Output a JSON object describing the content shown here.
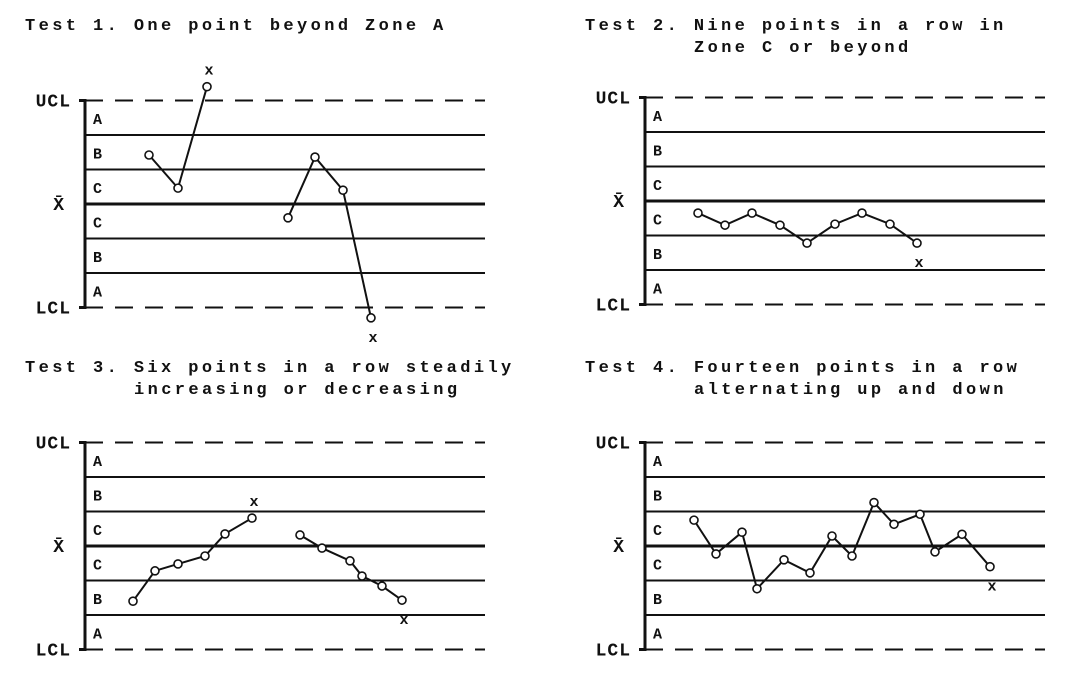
{
  "panels": [
    {
      "title": [
        "Test 1. One point beyond Zone A"
      ],
      "limit_labels": {
        "upper": "UCL",
        "center": "X̄",
        "lower": "LCL"
      },
      "zones": [
        "A",
        "B",
        "C",
        "C",
        "B",
        "A"
      ],
      "segments": [
        {
          "x": [
            16,
            23.25,
            30.5
          ],
          "y": [
            1.42,
            0.46,
            3.4
          ],
          "flag": "x"
        },
        {
          "x": [
            50.75,
            57.5,
            64.5,
            71.5
          ],
          "y": [
            -0.4,
            1.36,
            0.4,
            -3.3
          ],
          "flag": "x"
        }
      ]
    },
    {
      "title": [
        "Test 2. Nine points in a row in",
        "Zone C or beyond"
      ],
      "limit_labels": {
        "upper": "UCL",
        "center": "X̄",
        "lower": "LCL"
      },
      "zones": [
        "A",
        "B",
        "C",
        "C",
        "B",
        "A"
      ],
      "segments": [
        {
          "x": [
            13.25,
            20,
            26.75,
            33.75,
            40.5,
            47.5,
            54.25,
            61.25,
            68
          ],
          "y": [
            -0.35,
            -0.7,
            -0.35,
            -0.7,
            -1.22,
            -0.67,
            -0.35,
            -0.67,
            -1.22
          ],
          "flag": "x"
        }
      ]
    },
    {
      "title": [
        "Test 3. Six points in a row steadily",
        "increasing or decreasing"
      ],
      "limit_labels": {
        "upper": "UCL",
        "center": "X̄",
        "lower": "LCL"
      },
      "zones": [
        "A",
        "B",
        "C",
        "C",
        "B",
        "A"
      ],
      "segments": [
        {
          "x": [
            12,
            17.5,
            23.25,
            30,
            35,
            41.75
          ],
          "y": [
            -1.6,
            -0.72,
            -0.52,
            -0.29,
            0.35,
            0.81
          ],
          "flag": "x"
        },
        {
          "x": [
            53.75,
            59.25,
            66.25,
            69.25,
            74.25,
            79.25
          ],
          "y": [
            0.32,
            -0.06,
            -0.43,
            -0.87,
            -1.16,
            -1.57
          ],
          "flag": "x"
        }
      ]
    },
    {
      "title": [
        "Test 4. Fourteen points in a row",
        "alternating up and down"
      ],
      "limit_labels": {
        "upper": "UCL",
        "center": "X̄",
        "lower": "LCL"
      },
      "zones": [
        "A",
        "B",
        "C",
        "C",
        "B",
        "A"
      ],
      "segments": [
        {
          "x": [
            12.25,
            17.75,
            24.25,
            28,
            34.75,
            41.25,
            46.75,
            51.75,
            57.25,
            62.25,
            68.75,
            72.5,
            79.25,
            86.25
          ],
          "y": [
            0.75,
            -0.23,
            0.4,
            -1.24,
            -0.4,
            -0.78,
            0.29,
            -0.29,
            1.26,
            0.63,
            0.92,
            -0.17,
            0.34,
            -0.6
          ],
          "flag": "x"
        }
      ]
    }
  ]
}
